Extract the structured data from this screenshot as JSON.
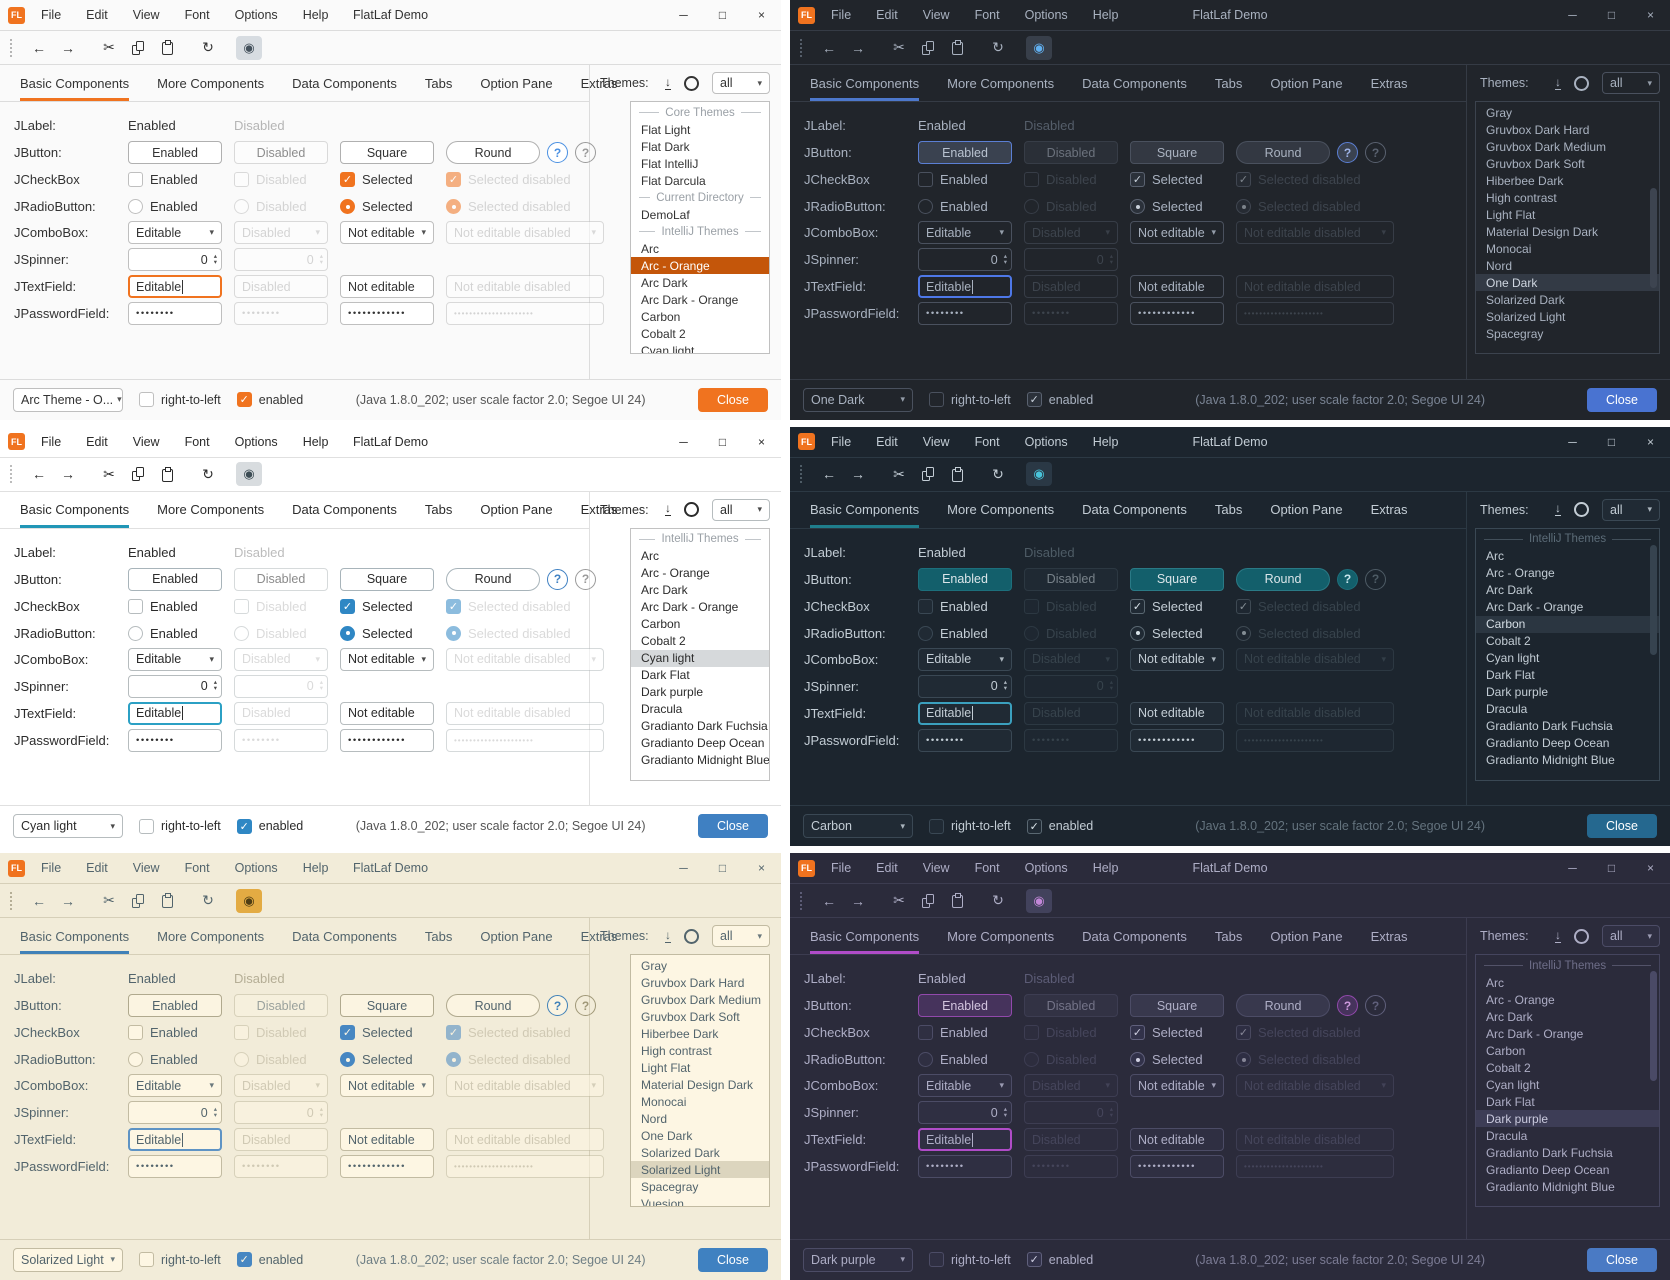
{
  "shared": {
    "window_title": "FlatLaf Demo",
    "menus": [
      "File",
      "Edit",
      "View",
      "Font",
      "Options",
      "Help"
    ],
    "window_buttons": {
      "minimize": "─",
      "maximize": "□",
      "close": "×"
    },
    "toolbar_icons": {
      "back": "←",
      "forward": "→",
      "cut": "✂",
      "refresh": "↻",
      "eye": "◉"
    },
    "tabs": [
      "Basic Components",
      "More Components",
      "Data Components",
      "Tabs",
      "Option Pane",
      "Extras"
    ],
    "themes_head": {
      "label": "Themes:",
      "download": "↓",
      "all_value": "all"
    },
    "combo_arrow": "▾",
    "spinner_up": "▴",
    "spinner_down": "▾",
    "check_mark": "✓",
    "rows": {
      "jlabel": {
        "label": "JLabel:",
        "enabled": "Enabled",
        "disabled": "Disabled"
      },
      "jbutton": {
        "label": "JButton:",
        "enabled": "Enabled",
        "disabled": "Disabled",
        "square": "Square",
        "round": "Round",
        "help": "?"
      },
      "jcheckbox": {
        "label": "JCheckBox",
        "enabled": "Enabled",
        "disabled": "Disabled",
        "selected": "Selected",
        "selected_disabled": "Selected disabled"
      },
      "jradiobutton": {
        "label": "JRadioButton:",
        "enabled": "Enabled",
        "disabled": "Disabled",
        "selected": "Selected",
        "selected_disabled": "Selected disabled"
      },
      "jcombobox": {
        "label": "JComboBox:",
        "editable": "Editable",
        "disabled": "Disabled",
        "not_editable": "Not editable",
        "not_editable_disabled": "Not editable disabled"
      },
      "jspinner": {
        "label": "JSpinner:",
        "value": "0",
        "value_disabled": "0"
      },
      "jtextfield": {
        "label": "JTextField:",
        "editable": "Editable",
        "disabled": "Disabled",
        "not_editable": "Not editable",
        "not_editable_disabled": "Not editable disabled"
      },
      "jpasswordfield": {
        "label": "JPasswordField:",
        "p1": "••••••••",
        "p2": "••••••••",
        "p3": "••••••••••••",
        "p4": "•••••••••••••••••••••"
      }
    },
    "footer": {
      "rtl": "right-to-left",
      "enabled": "enabled",
      "status": "(Java 1.8.0_202;  user scale factor 2.0; Segoe UI 24)",
      "close": "Close"
    }
  },
  "windows": [
    {
      "theme_key": "arc_orange",
      "accent": "#f0731f",
      "footer_combo": "Arc Theme - O...",
      "theme_list": [
        {
          "sep": "Core Themes"
        },
        {
          "label": "Flat Light"
        },
        {
          "label": "Flat Dark"
        },
        {
          "label": "Flat IntelliJ"
        },
        {
          "label": "Flat Darcula"
        },
        {
          "sep": "Current Directory"
        },
        {
          "label": "DemoLaf"
        },
        {
          "sep": "IntelliJ Themes"
        },
        {
          "label": "Arc"
        },
        {
          "label": "Arc - Orange",
          "selected": true
        },
        {
          "label": "Arc Dark"
        },
        {
          "label": "Arc Dark - Orange"
        },
        {
          "label": "Carbon"
        },
        {
          "label": "Cobalt 2"
        },
        {
          "label": "Cyan light"
        }
      ]
    },
    {
      "theme_key": "one_dark",
      "accent": "#4e78e8",
      "footer_combo": "One Dark",
      "scrollbar": "mid",
      "theme_list": [
        {
          "label": "Gray"
        },
        {
          "label": "Gruvbox Dark Hard"
        },
        {
          "label": "Gruvbox Dark Medium"
        },
        {
          "label": "Gruvbox Dark Soft"
        },
        {
          "label": "Hiberbee Dark"
        },
        {
          "label": "High contrast"
        },
        {
          "label": "Light Flat"
        },
        {
          "label": "Material Design Dark"
        },
        {
          "label": "Monocai"
        },
        {
          "label": "Nord"
        },
        {
          "label": "One Dark",
          "selected": true
        },
        {
          "label": "Solarized Dark"
        },
        {
          "label": "Solarized Light"
        },
        {
          "label": "Spacegray"
        }
      ]
    },
    {
      "theme_key": "cyan_light",
      "accent": "#2ba0c4",
      "footer_combo": "Cyan light",
      "theme_list": [
        {
          "sep": "IntelliJ Themes"
        },
        {
          "label": "Arc"
        },
        {
          "label": "Arc - Orange"
        },
        {
          "label": "Arc Dark"
        },
        {
          "label": "Arc Dark - Orange"
        },
        {
          "label": "Carbon"
        },
        {
          "label": "Cobalt 2"
        },
        {
          "label": "Cyan light",
          "selected": true
        },
        {
          "label": "Dark Flat"
        },
        {
          "label": "Dark purple"
        },
        {
          "label": "Dracula"
        },
        {
          "label": "Gradianto Dark Fuchsia"
        },
        {
          "label": "Gradianto Deep Ocean"
        },
        {
          "label": "Gradianto Midnight Blue"
        }
      ]
    },
    {
      "theme_key": "carbon",
      "accent": "#3ba0be",
      "footer_combo": "Carbon",
      "scrollbar": "top",
      "theme_list": [
        {
          "sep": "IntelliJ Themes"
        },
        {
          "label": "Arc"
        },
        {
          "label": "Arc - Orange"
        },
        {
          "label": "Arc Dark"
        },
        {
          "label": "Arc Dark - Orange"
        },
        {
          "label": "Carbon",
          "selected": true
        },
        {
          "label": "Cobalt 2"
        },
        {
          "label": "Cyan light"
        },
        {
          "label": "Dark Flat"
        },
        {
          "label": "Dark purple"
        },
        {
          "label": "Dracula"
        },
        {
          "label": "Gradianto Dark Fuchsia"
        },
        {
          "label": "Gradianto Deep Ocean"
        },
        {
          "label": "Gradianto Midnight Blue"
        }
      ]
    },
    {
      "theme_key": "solarized_light",
      "accent": "#4787c2",
      "footer_combo": "Solarized Light",
      "theme_list": [
        {
          "label": "Gray"
        },
        {
          "label": "Gruvbox Dark Hard"
        },
        {
          "label": "Gruvbox Dark Medium"
        },
        {
          "label": "Gruvbox Dark Soft"
        },
        {
          "label": "Hiberbee Dark"
        },
        {
          "label": "High contrast"
        },
        {
          "label": "Light Flat"
        },
        {
          "label": "Material Design Dark"
        },
        {
          "label": "Monocai"
        },
        {
          "label": "Nord"
        },
        {
          "label": "One Dark"
        },
        {
          "label": "Solarized Dark"
        },
        {
          "label": "Solarized Light",
          "selected": true
        },
        {
          "label": "Spacegray"
        },
        {
          "label": "Vuesion"
        }
      ]
    },
    {
      "theme_key": "dark_purple",
      "accent": "#b04cc8",
      "footer_combo": "Dark purple",
      "scrollbar": "top",
      "theme_list": [
        {
          "sep": "IntelliJ Themes"
        },
        {
          "label": "Arc"
        },
        {
          "label": "Arc - Orange"
        },
        {
          "label": "Arc Dark"
        },
        {
          "label": "Arc Dark - Orange"
        },
        {
          "label": "Carbon"
        },
        {
          "label": "Cobalt 2"
        },
        {
          "label": "Cyan light"
        },
        {
          "label": "Dark Flat"
        },
        {
          "label": "Dark purple",
          "selected": true
        },
        {
          "label": "Dracula"
        },
        {
          "label": "Gradianto Dark Fuchsia"
        },
        {
          "label": "Gradianto Deep Ocean"
        },
        {
          "label": "Gradianto Midnight Blue"
        }
      ]
    }
  ]
}
